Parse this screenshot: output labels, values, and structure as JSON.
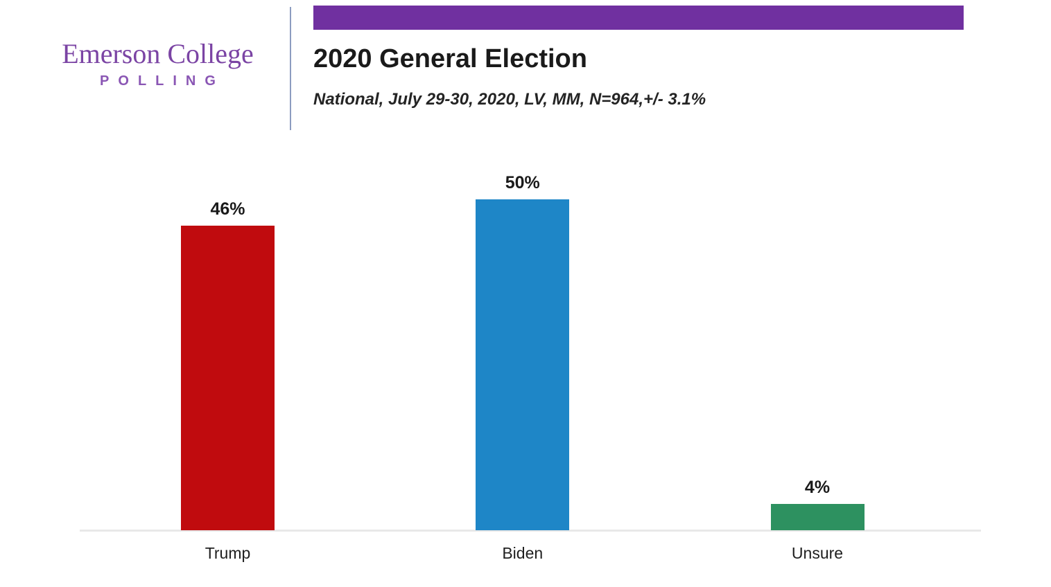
{
  "header": {
    "logo": {
      "name": "Emerson College",
      "subname": "POLLING"
    },
    "title": "2020 General Election",
    "subtitle": "National, July 29-30, 2020, LV, MM,  N=964,+/- 3.1%"
  },
  "colors": {
    "banner_purple": "#7030a0",
    "logo_purple": "#7b44a4",
    "logo_sub_purple": "#8a56b4",
    "divider_blue": "#8c9cc0",
    "axis_gray": "#e8e8e8",
    "label_black": "#1a1a1a"
  },
  "chart_data": {
    "type": "bar",
    "title": "2020 General Election",
    "subtitle": "National, July 29-30, 2020, LV, MM,  N=964,+/- 3.1%",
    "categories": [
      "Trump",
      "Biden",
      "Unsure"
    ],
    "values": [
      46,
      50,
      4
    ],
    "value_labels": [
      "46%",
      "50%",
      "4%"
    ],
    "bar_colors": [
      "#c00b0e",
      "#1e86c7",
      "#2d9160"
    ],
    "xlabel": "",
    "ylabel": "",
    "ylim": [
      0,
      55
    ],
    "grid": false,
    "legend": "none",
    "value_label_position": "above-bar"
  }
}
